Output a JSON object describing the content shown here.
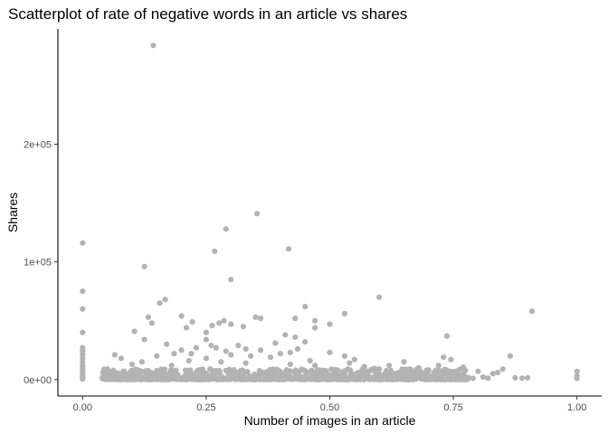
{
  "chart_data": {
    "type": "scatter",
    "title": "Scatterplot of rate of negative words in an article vs shares",
    "xlabel": "Number of images in an article",
    "ylabel": "Shares",
    "xlim": [
      -0.05,
      1.05
    ],
    "ylim": [
      -14000,
      298000
    ],
    "xticks": [
      {
        "value": 0.0,
        "label": "0.00"
      },
      {
        "value": 0.25,
        "label": "0.25"
      },
      {
        "value": 0.5,
        "label": "0.50"
      },
      {
        "value": 0.75,
        "label": "0.75"
      },
      {
        "value": 1.0,
        "label": "1.00"
      }
    ],
    "yticks": [
      {
        "value": 0,
        "label": "0e+00"
      },
      {
        "value": 100000,
        "label": "1e+05"
      },
      {
        "value": 200000,
        "label": "2e+05"
      }
    ],
    "grid": false,
    "legend": "none",
    "point_color": "#b3b3b3",
    "points": [
      {
        "x": 0.0,
        "y": 116000
      },
      {
        "x": 0.0,
        "y": 75000
      },
      {
        "x": 0.0,
        "y": 60000
      },
      {
        "x": 0.0,
        "y": 40000
      },
      {
        "x": 0.0,
        "y": 27000
      },
      {
        "x": 0.0,
        "y": 24000
      },
      {
        "x": 0.0,
        "y": 21000
      },
      {
        "x": 0.0,
        "y": 18000
      },
      {
        "x": 0.0,
        "y": 15000
      },
      {
        "x": 0.0,
        "y": 12000
      },
      {
        "x": 0.0,
        "y": 10000
      },
      {
        "x": 0.0,
        "y": 8000
      },
      {
        "x": 0.0,
        "y": 6000
      },
      {
        "x": 0.0,
        "y": 4000
      },
      {
        "x": 0.0,
        "y": 2000
      },
      {
        "x": 0.0,
        "y": 1000
      },
      {
        "x": 0.0,
        "y": 500
      },
      {
        "x": 0.143,
        "y": 284000
      },
      {
        "x": 0.353,
        "y": 141000
      },
      {
        "x": 0.29,
        "y": 128000
      },
      {
        "x": 0.417,
        "y": 111000
      },
      {
        "x": 0.267,
        "y": 109000
      },
      {
        "x": 0.125,
        "y": 96000
      },
      {
        "x": 0.3,
        "y": 85000
      },
      {
        "x": 0.6,
        "y": 70000
      },
      {
        "x": 0.167,
        "y": 68000
      },
      {
        "x": 0.156,
        "y": 65000
      },
      {
        "x": 0.45,
        "y": 62000
      },
      {
        "x": 0.909,
        "y": 58000
      },
      {
        "x": 0.53,
        "y": 56000
      },
      {
        "x": 0.2,
        "y": 54000
      },
      {
        "x": 0.133,
        "y": 53000
      },
      {
        "x": 0.35,
        "y": 53000
      },
      {
        "x": 0.36,
        "y": 52000
      },
      {
        "x": 0.43,
        "y": 52000
      },
      {
        "x": 0.286,
        "y": 50000
      },
      {
        "x": 0.47,
        "y": 50000
      },
      {
        "x": 0.222,
        "y": 49000
      },
      {
        "x": 0.276,
        "y": 48000
      },
      {
        "x": 0.14,
        "y": 48000
      },
      {
        "x": 0.3,
        "y": 47000
      },
      {
        "x": 0.5,
        "y": 47000
      },
      {
        "x": 0.262,
        "y": 46000
      },
      {
        "x": 0.325,
        "y": 45000
      },
      {
        "x": 0.21,
        "y": 44000
      },
      {
        "x": 0.47,
        "y": 44000
      },
      {
        "x": 0.105,
        "y": 41000
      },
      {
        "x": 0.25,
        "y": 40000
      },
      {
        "x": 0.41,
        "y": 38000
      },
      {
        "x": 0.737,
        "y": 37000
      },
      {
        "x": 0.25,
        "y": 34000
      },
      {
        "x": 0.125,
        "y": 34000
      },
      {
        "x": 0.43,
        "y": 36000
      },
      {
        "x": 0.45,
        "y": 32000
      },
      {
        "x": 0.39,
        "y": 31000
      },
      {
        "x": 0.17,
        "y": 30000
      },
      {
        "x": 0.315,
        "y": 29000
      },
      {
        "x": 0.26,
        "y": 29000
      },
      {
        "x": 0.27,
        "y": 27000
      },
      {
        "x": 0.23,
        "y": 27000
      },
      {
        "x": 0.435,
        "y": 26000
      },
      {
        "x": 0.33,
        "y": 26000
      },
      {
        "x": 0.2,
        "y": 25000
      },
      {
        "x": 0.29,
        "y": 24000
      },
      {
        "x": 0.36,
        "y": 25000
      },
      {
        "x": 0.42,
        "y": 23000
      },
      {
        "x": 0.4,
        "y": 22000
      },
      {
        "x": 0.5,
        "y": 23000
      },
      {
        "x": 0.185,
        "y": 22000
      },
      {
        "x": 0.22,
        "y": 22000
      },
      {
        "x": 0.3,
        "y": 21000
      },
      {
        "x": 0.065,
        "y": 21000
      },
      {
        "x": 0.15,
        "y": 20000
      },
      {
        "x": 0.34,
        "y": 20000
      },
      {
        "x": 0.53,
        "y": 20000
      },
      {
        "x": 0.865,
        "y": 20000
      },
      {
        "x": 0.078,
        "y": 18000
      },
      {
        "x": 0.25,
        "y": 18000
      },
      {
        "x": 0.38,
        "y": 19000
      },
      {
        "x": 0.73,
        "y": 19000
      },
      {
        "x": 0.745,
        "y": 17000
      },
      {
        "x": 0.46,
        "y": 16000
      },
      {
        "x": 0.55,
        "y": 17000
      },
      {
        "x": 0.215,
        "y": 16000
      },
      {
        "x": 0.28,
        "y": 15000
      },
      {
        "x": 0.12,
        "y": 15000
      },
      {
        "x": 0.65,
        "y": 15000
      },
      {
        "x": 0.54,
        "y": 14000
      },
      {
        "x": 0.33,
        "y": 14000
      },
      {
        "x": 0.1,
        "y": 13000
      },
      {
        "x": 0.42,
        "y": 13000
      },
      {
        "x": 0.47,
        "y": 12000
      },
      {
        "x": 0.72,
        "y": 12000
      },
      {
        "x": 0.62,
        "y": 12000
      },
      {
        "x": 0.18,
        "y": 12000
      },
      {
        "x": 0.57,
        "y": 11000
      },
      {
        "x": 0.77,
        "y": 10500
      },
      {
        "x": 0.68,
        "y": 10000
      },
      {
        "x": 0.85,
        "y": 9000
      },
      {
        "x": 0.05,
        "y": 9000
      },
      {
        "x": 0.59,
        "y": 9500
      },
      {
        "x": 0.6,
        "y": 9000
      },
      {
        "x": 0.66,
        "y": 8500
      },
      {
        "x": 0.7,
        "y": 8000
      },
      {
        "x": 0.8,
        "y": 7000
      },
      {
        "x": 0.84,
        "y": 6000
      },
      {
        "x": 0.83,
        "y": 5000
      },
      {
        "x": 0.76,
        "y": 5500
      },
      {
        "x": 1.0,
        "y": 7000
      },
      {
        "x": 1.0,
        "y": 3000
      },
      {
        "x": 1.0,
        "y": 1000
      },
      {
        "x": 0.875,
        "y": 1500
      },
      {
        "x": 0.889,
        "y": 1200
      },
      {
        "x": 0.9,
        "y": 1500
      },
      {
        "x": 0.82,
        "y": 1200
      },
      {
        "x": 0.79,
        "y": 1000
      },
      {
        "x": 0.78,
        "y": 1800
      },
      {
        "x": 0.81,
        "y": 2200
      }
    ],
    "dense_band": {
      "x_min": 0.04,
      "x_max": 0.78,
      "y_min": 0,
      "y_max": 9000
    }
  }
}
